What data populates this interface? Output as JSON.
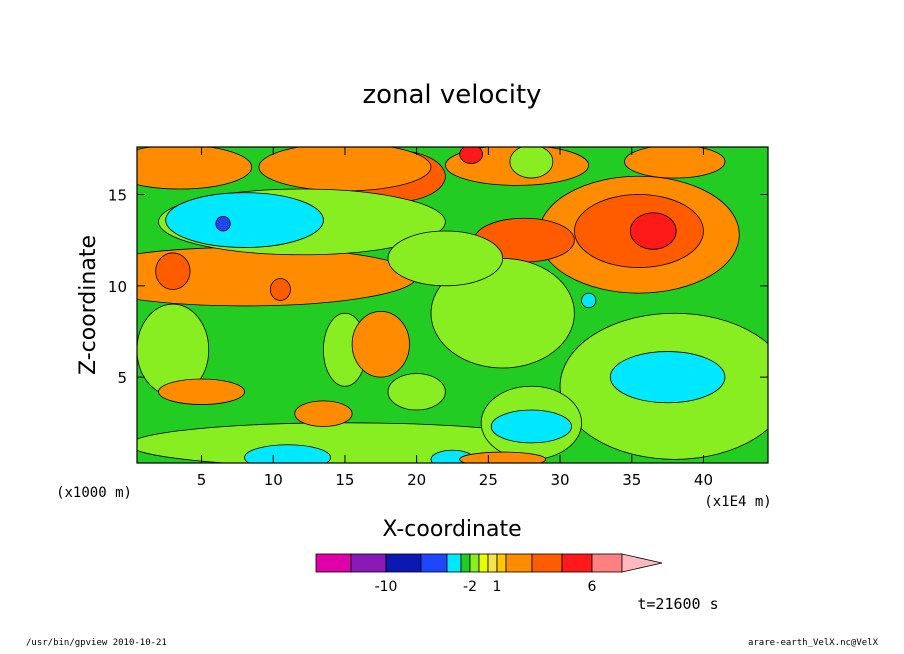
{
  "chart_data": {
    "type": "heatmap",
    "title": "zonal velocity",
    "xlabel": "X-coordinate",
    "ylabel": "Z-coordinate",
    "x_units": "(x1E4 m)",
    "z_units": "(x1000 m)",
    "xlim": [
      0.5,
      44.5
    ],
    "ylim": [
      0.3,
      17.6
    ],
    "x_ticks": [
      "5",
      "10",
      "15",
      "20",
      "25",
      "30",
      "35",
      "40"
    ],
    "y_ticks": [
      "5",
      "10",
      "15"
    ],
    "time_label": "t=21600 s",
    "colorbar": {
      "tick_labels": [
        "-10",
        "-2",
        "1",
        "6"
      ],
      "levels": [
        -14,
        -12,
        -10,
        -8,
        -6,
        -4,
        -2,
        -1,
        0,
        1,
        2,
        3,
        4,
        6,
        8,
        10
      ],
      "colors": [
        "#e000a8",
        "#8a1ab8",
        "#0c18b2",
        "#1e46ff",
        "#00e8ff",
        "#22cc22",
        "#88ee22",
        "#e8ff00",
        "#f6e24a",
        "#ffc800",
        "#ff8c00",
        "#ff5c00",
        "#ff1a1a",
        "#ff8080",
        "#ffb8c0"
      ]
    },
    "regions": [
      {
        "value": 2.5,
        "x": 3.5,
        "z": 16.5,
        "rx": 5,
        "rz": 1.2
      },
      {
        "value": 3.5,
        "x": 18.5,
        "z": 16,
        "rx": 3.5,
        "rz": 1.4
      },
      {
        "value": 2.5,
        "x": 15,
        "z": 16.5,
        "rx": 6,
        "rz": 1.3
      },
      {
        "value": 2.5,
        "x": 27,
        "z": 16.6,
        "rx": 5,
        "rz": 1.1
      },
      {
        "value": 5,
        "x": 23.8,
        "z": 17.2,
        "rx": 0.8,
        "rz": 0.5
      },
      {
        "value": 2.5,
        "x": 38,
        "z": 16.8,
        "rx": 3.5,
        "rz": 0.9
      },
      {
        "value": -1.5,
        "x": 28,
        "z": 16.8,
        "rx": 1.5,
        "rz": 0.9
      },
      {
        "value": 2.5,
        "x": 35.5,
        "z": 12.8,
        "rx": 7,
        "rz": 3.2
      },
      {
        "value": 3.5,
        "x": 35.5,
        "z": 13,
        "rx": 4.5,
        "rz": 2.0
      },
      {
        "value": 5,
        "x": 36.5,
        "z": 13,
        "rx": 1.6,
        "rz": 1.0
      },
      {
        "value": 3.5,
        "x": 27.5,
        "z": 12.5,
        "rx": 3.5,
        "rz": 1.2
      },
      {
        "value": 2.5,
        "x": 8,
        "z": 10.5,
        "rx": 12,
        "rz": 1.6
      },
      {
        "value": 3.5,
        "x": 3,
        "z": 10.8,
        "rx": 1.2,
        "rz": 1.0
      },
      {
        "value": 3.5,
        "x": 10.5,
        "z": 9.8,
        "rx": 0.7,
        "rz": 0.6
      },
      {
        "value": -1.5,
        "x": 12,
        "z": 13.5,
        "rx": 10,
        "rz": 1.8
      },
      {
        "value": -5,
        "x": 8,
        "z": 13.6,
        "rx": 5.5,
        "rz": 1.5
      },
      {
        "value": -7,
        "x": 6.5,
        "z": 13.4,
        "rx": 0.5,
        "rz": 0.4
      },
      {
        "value": -1.5,
        "x": 26,
        "z": 8.5,
        "rx": 5,
        "rz": 3.0
      },
      {
        "value": -1.5,
        "x": 22,
        "z": 11.5,
        "rx": 4,
        "rz": 1.5
      },
      {
        "value": -1.5,
        "x": 38,
        "z": 4.5,
        "rx": 8,
        "rz": 4.0
      },
      {
        "value": -5,
        "x": 37.5,
        "z": 5.0,
        "rx": 4,
        "rz": 1.4
      },
      {
        "value": -5,
        "x": 32,
        "z": 9.2,
        "rx": 0.5,
        "rz": 0.4
      },
      {
        "value": -1.5,
        "x": 3,
        "z": 6.5,
        "rx": 2.5,
        "rz": 2.5
      },
      {
        "value": -1.5,
        "x": 15,
        "z": 6.5,
        "rx": 1.5,
        "rz": 2.0
      },
      {
        "value": -1.5,
        "x": 20,
        "z": 4.2,
        "rx": 2.0,
        "rz": 1.0
      },
      {
        "value": -1.5,
        "x": 15,
        "z": 1.3,
        "rx": 15,
        "rz": 1.2
      },
      {
        "value": -5,
        "x": 11,
        "z": 0.6,
        "rx": 3,
        "rz": 0.7
      },
      {
        "value": -5,
        "x": 22.5,
        "z": 0.5,
        "rx": 1.5,
        "rz": 0.5
      },
      {
        "value": -1.5,
        "x": 28,
        "z": 2.5,
        "rx": 3.5,
        "rz": 2.0
      },
      {
        "value": -5,
        "x": 28,
        "z": 2.3,
        "rx": 2.8,
        "rz": 0.9
      },
      {
        "value": 2.5,
        "x": 17.5,
        "z": 6.8,
        "rx": 2.0,
        "rz": 1.8
      },
      {
        "value": 2.5,
        "x": 5,
        "z": 4.2,
        "rx": 3.0,
        "rz": 0.7
      },
      {
        "value": 2.5,
        "x": 13.5,
        "z": 3.0,
        "rx": 2.0,
        "rz": 0.7
      },
      {
        "value": 2.5,
        "x": 26,
        "z": 0.5,
        "rx": 3,
        "rz": 0.4
      }
    ]
  },
  "footer": {
    "left": "/usr/bin/gpview   2010-10-21",
    "right": "arare-earth_VelX.nc@VelX"
  }
}
